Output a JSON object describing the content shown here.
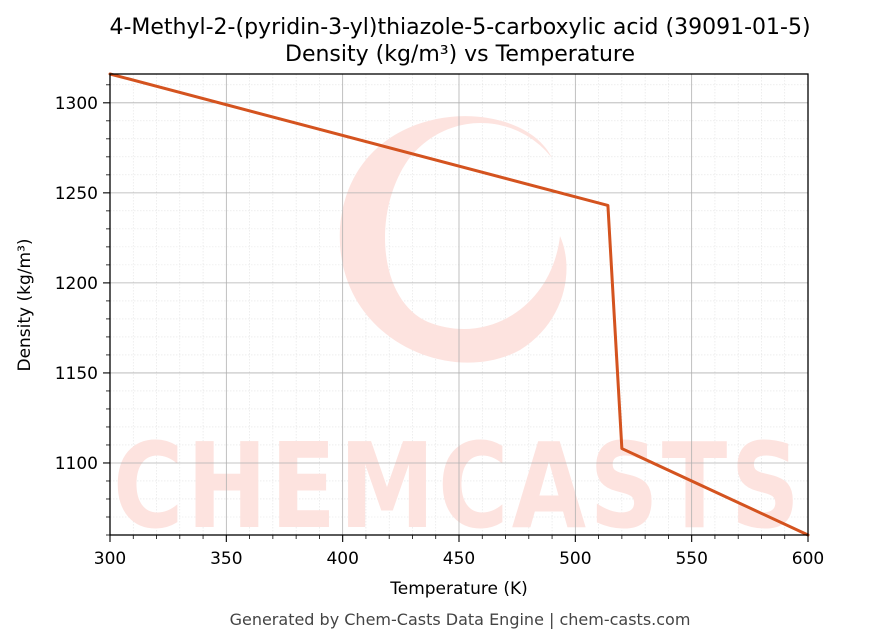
{
  "chart_data": {
    "type": "line",
    "title": "4-Methyl-2-(pyridin-3-yl)thiazole-5-carboxylic acid (39091-01-5)",
    "subtitle": "Density (kg/m³) vs Temperature",
    "xlabel": "Temperature (K)",
    "ylabel": "Density (kg/m³)",
    "xlim": [
      300,
      600
    ],
    "ylim": [
      1060,
      1316
    ],
    "xticks": [
      300,
      350,
      400,
      450,
      500,
      550,
      600
    ],
    "yticks": [
      1100,
      1150,
      1200,
      1250,
      1300
    ],
    "grid": true,
    "series": [
      {
        "color": "#d4531f",
        "x": [
          300,
          514,
          520,
          600
        ],
        "y": [
          1316,
          1243,
          1108,
          1060
        ]
      }
    ]
  },
  "watermark": {
    "text": "CHEMCASTS",
    "color": "#fde3df"
  },
  "footer": {
    "text": "Generated by Chem-Casts Data Engine | chem-casts.com"
  }
}
